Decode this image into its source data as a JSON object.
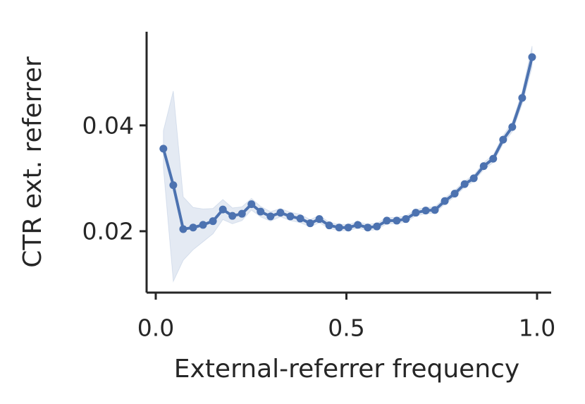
{
  "chart_data": {
    "type": "line",
    "x_label": "External-referrer frequency",
    "y_label": "CTR ext. referrer",
    "color": "#4c72b0",
    "x": [
      0.02,
      0.046,
      0.072,
      0.098,
      0.124,
      0.15,
      0.176,
      0.201,
      0.226,
      0.251,
      0.275,
      0.301,
      0.327,
      0.353,
      0.379,
      0.405,
      0.429,
      0.455,
      0.481,
      0.505,
      0.53,
      0.556,
      0.58,
      0.606,
      0.632,
      0.656,
      0.682,
      0.708,
      0.732,
      0.758,
      0.784,
      0.81,
      0.834,
      0.86,
      0.885,
      0.911,
      0.935,
      0.961,
      0.987
    ],
    "values": [
      0.0356,
      0.0287,
      0.0204,
      0.0207,
      0.0212,
      0.0219,
      0.0241,
      0.0229,
      0.0233,
      0.0251,
      0.0237,
      0.0228,
      0.0235,
      0.0228,
      0.0224,
      0.0215,
      0.0223,
      0.0211,
      0.0207,
      0.0207,
      0.0212,
      0.0207,
      0.0209,
      0.022,
      0.022,
      0.0223,
      0.0235,
      0.0239,
      0.024,
      0.0257,
      0.0271,
      0.0289,
      0.03,
      0.0323,
      0.0337,
      0.0373,
      0.0397,
      0.0452,
      0.0529
    ],
    "band_lower": [
      0.032,
      0.0105,
      0.0145,
      0.0165,
      0.018,
      0.0195,
      0.0222,
      0.0214,
      0.022,
      0.024,
      0.0227,
      0.0219,
      0.0227,
      0.022,
      0.0216,
      0.0208,
      0.0216,
      0.0205,
      0.0201,
      0.0201,
      0.0206,
      0.0201,
      0.0203,
      0.0214,
      0.0214,
      0.0217,
      0.0229,
      0.0233,
      0.0234,
      0.0251,
      0.0265,
      0.0283,
      0.0294,
      0.0316,
      0.033,
      0.0365,
      0.0388,
      0.044,
      0.051
    ],
    "band_upper": [
      0.039,
      0.0465,
      0.0265,
      0.0245,
      0.0242,
      0.0243,
      0.026,
      0.0244,
      0.0246,
      0.0262,
      0.0247,
      0.0237,
      0.0243,
      0.0236,
      0.0232,
      0.0222,
      0.023,
      0.0217,
      0.0213,
      0.0213,
      0.0218,
      0.0213,
      0.0215,
      0.0226,
      0.0226,
      0.0229,
      0.0241,
      0.0245,
      0.0246,
      0.0263,
      0.0277,
      0.0295,
      0.0306,
      0.033,
      0.0344,
      0.0381,
      0.0406,
      0.0464,
      0.055
    ],
    "xlim": [
      -0.024,
      1.037
    ],
    "ylim": [
      0.0084,
      0.0577
    ],
    "xticks": [
      {
        "value": 0,
        "label": "0.0"
      },
      0.5,
      {
        "value": 1,
        "label": "1.0"
      }
    ],
    "yticks": [
      0.02,
      0.04
    ]
  }
}
